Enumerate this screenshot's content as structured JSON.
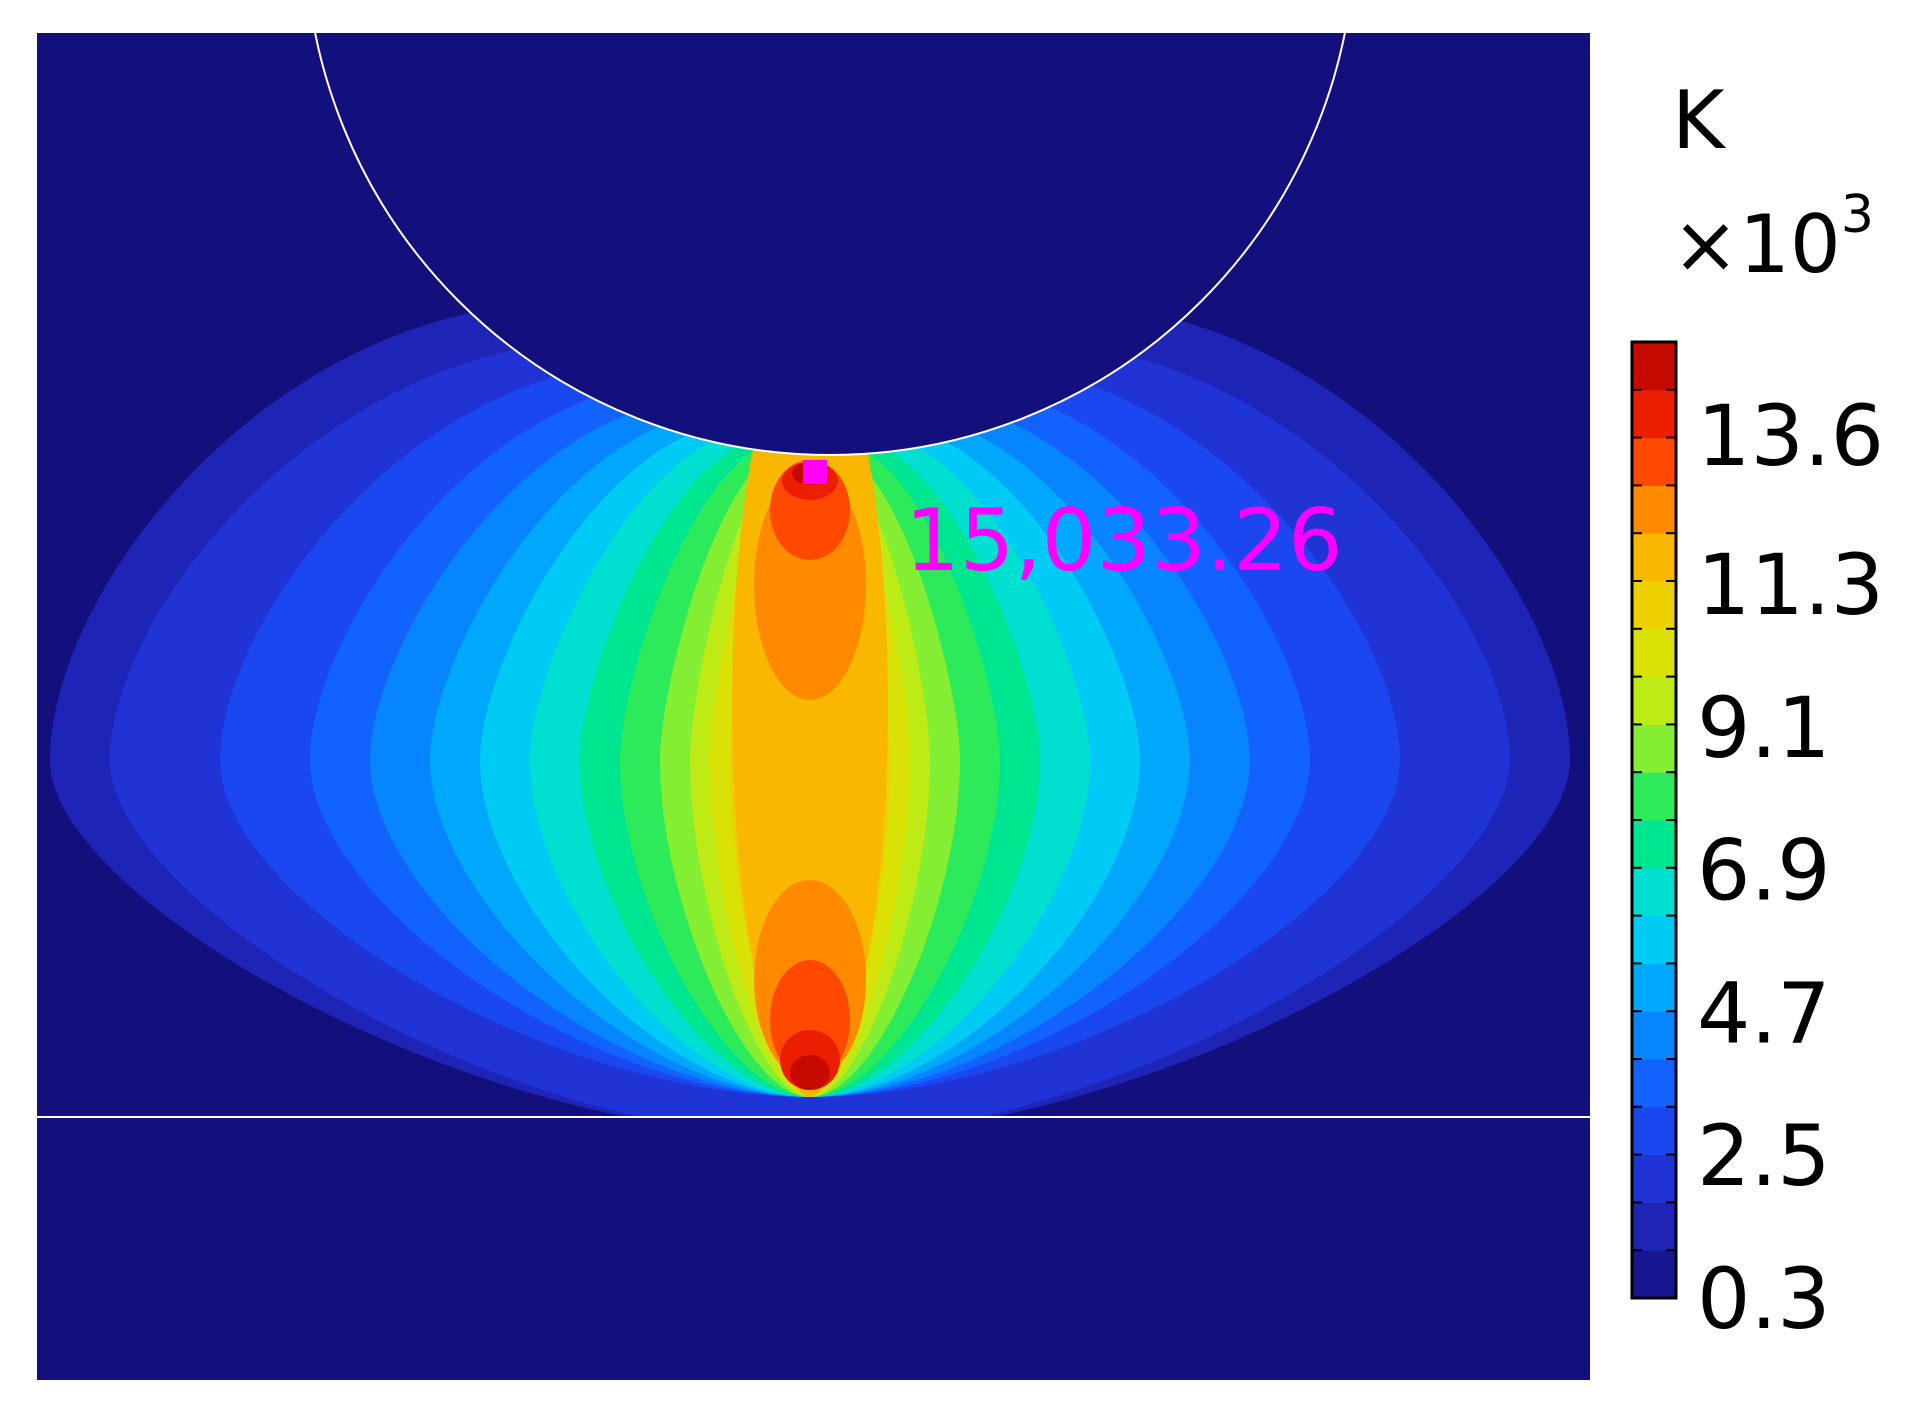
{
  "chart_data": {
    "type": "heatmap",
    "title": "",
    "xlabel": "",
    "ylabel": "",
    "colorbar": {
      "unit": "K",
      "multiplier_base": "×10",
      "multiplier_exp": "3",
      "ticks": [
        "0.3",
        "2.5",
        "4.7",
        "6.9",
        "9.1",
        "11.3",
        "13.6"
      ],
      "tick_values": [
        0.3,
        2.5,
        4.7,
        6.9,
        9.1,
        11.3,
        13.6
      ],
      "range": [
        0.3,
        15.03
      ],
      "levels": 20,
      "colormap": "rainbow"
    },
    "annotations": [
      {
        "label": "15,033.26",
        "value": 15033.26,
        "kind": "maximum",
        "color": "#ff00ff"
      }
    ],
    "colors": {
      "background_field": "#13107e",
      "outline": "#ffffff",
      "marker": "#ff00ff"
    }
  }
}
